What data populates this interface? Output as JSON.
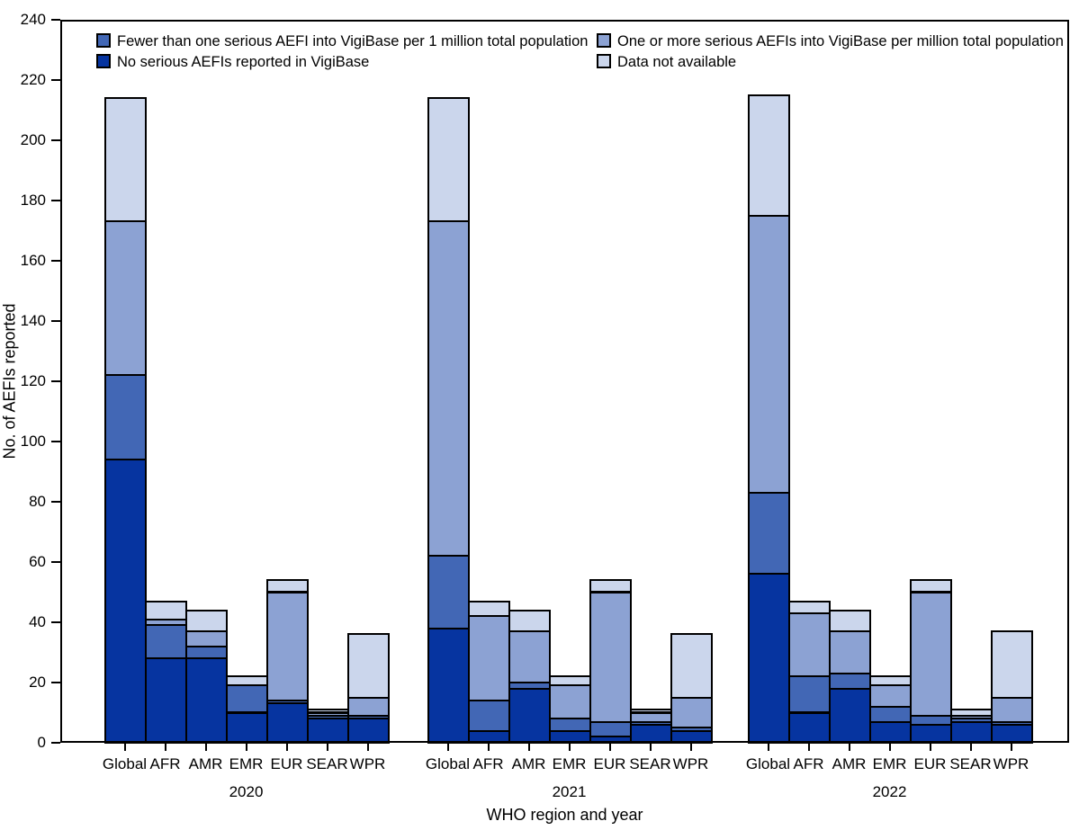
{
  "y_axis": {
    "label": "No. of AEFIs reported",
    "min": 0,
    "max": 240,
    "step": 20
  },
  "x_axis": {
    "label": "WHO region and year"
  },
  "colors": {
    "no_serious": "#0634A0",
    "fewer_than_one": "#4267B5",
    "one_or_more": "#8CA2D3",
    "data_not_available": "#CBD6EC",
    "border": "#000000"
  },
  "legend": [
    {
      "key": "fewer_than_one",
      "label": "Fewer than one serious AEFI into VigiBase per 1 million total population"
    },
    {
      "key": "one_or_more",
      "label": "One or more serious AEFIs into VigiBase per million total population"
    },
    {
      "key": "no_serious",
      "label": "No serious AEFIs reported in VigiBase"
    },
    {
      "key": "data_not_available",
      "label": "Data not available"
    }
  ],
  "chart_data": {
    "type": "bar",
    "stacked": true,
    "title": "",
    "xlabel": "WHO region and year",
    "ylabel": "No. of AEFIs reported",
    "ylim": [
      0,
      240
    ],
    "grid": false,
    "legend_position": "top-inside",
    "stack_order_bottom_to_top": [
      "no_serious",
      "fewer_than_one",
      "one_or_more",
      "data_not_available"
    ],
    "categories": [
      "Global",
      "AFR",
      "AMR",
      "EMR",
      "EUR",
      "SEAR",
      "WPR"
    ],
    "groups": [
      {
        "year": "2020",
        "bars": [
          {
            "region": "Global",
            "no_serious": 94,
            "fewer_than_one": 28,
            "one_or_more": 51,
            "data_not_available": 41,
            "total": 214
          },
          {
            "region": "AFR",
            "no_serious": 28,
            "fewer_than_one": 11,
            "one_or_more": 2,
            "data_not_available": 6,
            "total": 47
          },
          {
            "region": "AMR",
            "no_serious": 28,
            "fewer_than_one": 4,
            "one_or_more": 5,
            "data_not_available": 7,
            "total": 44
          },
          {
            "region": "EMR",
            "no_serious": 10,
            "fewer_than_one": 9,
            "one_or_more": 0,
            "data_not_available": 3,
            "total": 22
          },
          {
            "region": "EUR",
            "no_serious": 13,
            "fewer_than_one": 1,
            "one_or_more": 36,
            "data_not_available": 4,
            "total": 54
          },
          {
            "region": "SEAR",
            "no_serious": 8,
            "fewer_than_one": 1,
            "one_or_more": 1,
            "data_not_available": 1,
            "total": 11
          },
          {
            "region": "WPR",
            "no_serious": 8,
            "fewer_than_one": 1,
            "one_or_more": 6,
            "data_not_available": 21,
            "total": 36
          }
        ]
      },
      {
        "year": "2021",
        "bars": [
          {
            "region": "Global",
            "no_serious": 38,
            "fewer_than_one": 24,
            "one_or_more": 111,
            "data_not_available": 41,
            "total": 214
          },
          {
            "region": "AFR",
            "no_serious": 4,
            "fewer_than_one": 10,
            "one_or_more": 28,
            "data_not_available": 5,
            "total": 47
          },
          {
            "region": "AMR",
            "no_serious": 18,
            "fewer_than_one": 2,
            "one_or_more": 17,
            "data_not_available": 7,
            "total": 44
          },
          {
            "region": "EMR",
            "no_serious": 4,
            "fewer_than_one": 4,
            "one_or_more": 11,
            "data_not_available": 3,
            "total": 22
          },
          {
            "region": "EUR",
            "no_serious": 2,
            "fewer_than_one": 5,
            "one_or_more": 43,
            "data_not_available": 4,
            "total": 54
          },
          {
            "region": "SEAR",
            "no_serious": 6,
            "fewer_than_one": 1,
            "one_or_more": 3,
            "data_not_available": 1,
            "total": 11
          },
          {
            "region": "WPR",
            "no_serious": 4,
            "fewer_than_one": 1,
            "one_or_more": 10,
            "data_not_available": 21,
            "total": 36
          }
        ]
      },
      {
        "year": "2022",
        "bars": [
          {
            "region": "Global",
            "no_serious": 56,
            "fewer_than_one": 27,
            "one_or_more": 92,
            "data_not_available": 40,
            "total": 215
          },
          {
            "region": "AFR",
            "no_serious": 10,
            "fewer_than_one": 12,
            "one_or_more": 21,
            "data_not_available": 4,
            "total": 47
          },
          {
            "region": "AMR",
            "no_serious": 18,
            "fewer_than_one": 5,
            "one_or_more": 14,
            "data_not_available": 7,
            "total": 44
          },
          {
            "region": "EMR",
            "no_serious": 7,
            "fewer_than_one": 5,
            "one_or_more": 7,
            "data_not_available": 3,
            "total": 22
          },
          {
            "region": "EUR",
            "no_serious": 6,
            "fewer_than_one": 3,
            "one_or_more": 41,
            "data_not_available": 4,
            "total": 54
          },
          {
            "region": "SEAR",
            "no_serious": 7,
            "fewer_than_one": 1,
            "one_or_more": 1,
            "data_not_available": 2,
            "total": 11
          },
          {
            "region": "WPR",
            "no_serious": 6,
            "fewer_than_one": 1,
            "one_or_more": 8,
            "data_not_available": 22,
            "total": 37
          }
        ]
      }
    ]
  }
}
